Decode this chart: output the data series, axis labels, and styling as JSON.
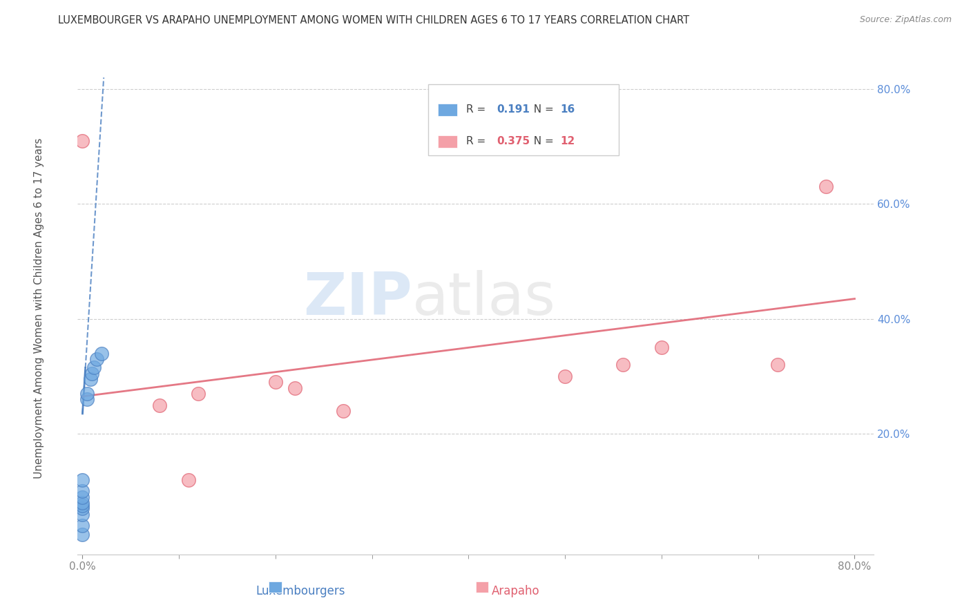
{
  "title": "LUXEMBOURGER VS ARAPAHO UNEMPLOYMENT AMONG WOMEN WITH CHILDREN AGES 6 TO 17 YEARS CORRELATION CHART",
  "source": "Source: ZipAtlas.com",
  "xlabel_lux": "Luxembourgers",
  "xlabel_ara": "Arapaho",
  "ylabel": "Unemployment Among Women with Children Ages 6 to 17 years",
  "xlim": [
    -0.005,
    0.82
  ],
  "ylim": [
    -0.01,
    0.88
  ],
  "xtick_positions": [
    0.0,
    0.8
  ],
  "xtick_labels": [
    "0.0%",
    "80.0%"
  ],
  "ytick_positions": [
    0.2,
    0.4,
    0.6,
    0.8
  ],
  "ytick_labels": [
    "20.0%",
    "40.0%",
    "60.0%",
    "80.0%"
  ],
  "grid_yticks": [
    0.2,
    0.4,
    0.6,
    0.8
  ],
  "lux_color": "#6ea8e0",
  "lux_color_dark": "#4a7fc1",
  "ara_color": "#f4a0a8",
  "ara_color_dark": "#e06070",
  "lux_R": "0.191",
  "lux_N": "16",
  "ara_R": "0.375",
  "ara_N": "12",
  "lux_scatter_x": [
    0.0,
    0.0,
    0.0,
    0.0,
    0.0,
    0.0,
    0.0,
    0.0,
    0.0,
    0.005,
    0.005,
    0.008,
    0.01,
    0.012,
    0.015,
    0.02
  ],
  "lux_scatter_y": [
    0.025,
    0.04,
    0.06,
    0.07,
    0.075,
    0.08,
    0.09,
    0.1,
    0.12,
    0.26,
    0.27,
    0.295,
    0.305,
    0.315,
    0.33,
    0.34
  ],
  "ara_scatter_x": [
    0.0,
    0.08,
    0.11,
    0.12,
    0.2,
    0.22,
    0.27,
    0.5,
    0.56,
    0.6,
    0.72,
    0.77
  ],
  "ara_scatter_y": [
    0.71,
    0.25,
    0.12,
    0.27,
    0.29,
    0.28,
    0.24,
    0.3,
    0.32,
    0.35,
    0.32,
    0.63
  ],
  "lux_trend_x": [
    0.0,
    0.022
  ],
  "lux_trend_y": [
    0.235,
    0.82
  ],
  "ara_trend_x": [
    0.0,
    0.8
  ],
  "ara_trend_y": [
    0.265,
    0.435
  ],
  "watermark_zip": "ZIP",
  "watermark_atlas": "atlas",
  "background_color": "#ffffff",
  "grid_color": "#c8c8c8",
  "tick_color": "#888888",
  "ytick_color": "#5b8dd9"
}
